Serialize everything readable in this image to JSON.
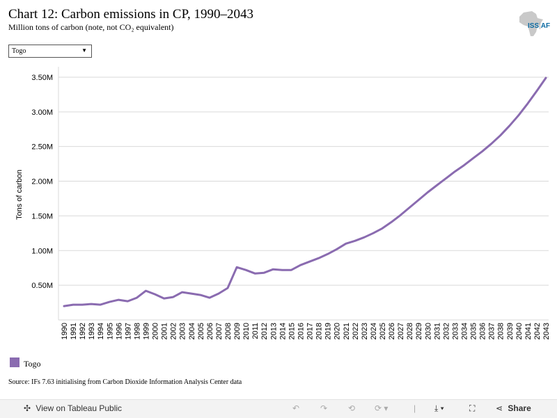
{
  "header": {
    "title": "Chart 12: Carbon emissions in CP, 1990–2043",
    "subtitle": "Million tons of carbon (note, not CO₂ equivalent)"
  },
  "logo": {
    "text": "ISS",
    "suffix": "AF"
  },
  "filter": {
    "selected": "Togo"
  },
  "legend": {
    "label": "Togo",
    "color": "#8a6bb0"
  },
  "source": "Source: IFs 7.63 initialising from Carbon Dioxide Information Analysis Center data",
  "toolbar": {
    "view_label": "View on Tableau Public",
    "share_label": "Share"
  },
  "chart_data": {
    "type": "line",
    "ylabel": "Tons of carbon",
    "ylim": [
      0,
      3650000
    ],
    "yticks": [
      500000,
      1000000,
      1500000,
      2000000,
      2500000,
      3000000,
      3500000
    ],
    "ytick_labels": [
      "0.50M",
      "1.00M",
      "1.50M",
      "2.00M",
      "2.50M",
      "3.00M",
      "3.50M"
    ],
    "x": [
      "1990",
      "1991",
      "1992",
      "1993",
      "1994",
      "1995",
      "1996",
      "1997",
      "1998",
      "1999",
      "2000",
      "2001",
      "2002",
      "2003",
      "2004",
      "2005",
      "2006",
      "2007",
      "2008",
      "2009",
      "2010",
      "2011",
      "2012",
      "2013",
      "2014",
      "2015",
      "2016",
      "2017",
      "2018",
      "2019",
      "2020",
      "2021",
      "2022",
      "2023",
      "2024",
      "2025",
      "2026",
      "2027",
      "2028",
      "2029",
      "2030",
      "2031",
      "2032",
      "2033",
      "2034",
      "2035",
      "2036",
      "2037",
      "2038",
      "2039",
      "2040",
      "2041",
      "2042",
      "2043"
    ],
    "series": [
      {
        "name": "Togo",
        "color": "#8a6bb0",
        "values": [
          200000,
          220000,
          220000,
          230000,
          220000,
          260000,
          290000,
          270000,
          320000,
          420000,
          370000,
          310000,
          330000,
          400000,
          380000,
          360000,
          320000,
          380000,
          460000,
          760000,
          720000,
          670000,
          680000,
          730000,
          720000,
          720000,
          790000,
          840000,
          890000,
          950000,
          1020000,
          1100000,
          1140000,
          1190000,
          1250000,
          1320000,
          1410000,
          1510000,
          1620000,
          1730000,
          1840000,
          1940000,
          2040000,
          2140000,
          2230000,
          2330000,
          2430000,
          2540000,
          2660000,
          2800000,
          2950000,
          3120000,
          3300000,
          3490000
        ]
      }
    ],
    "grid": true
  }
}
